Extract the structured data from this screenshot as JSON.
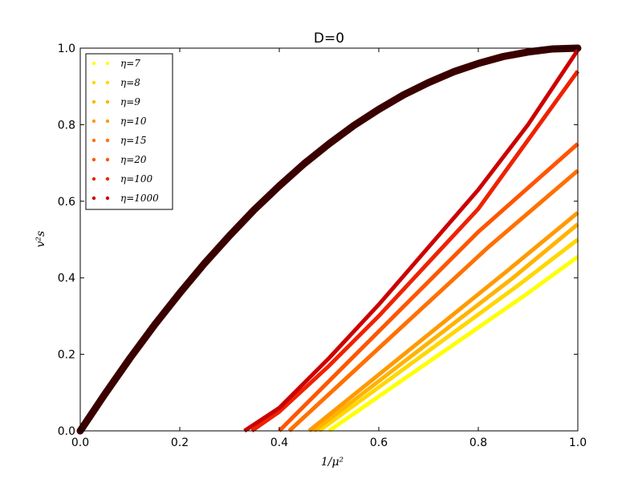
{
  "chart_data": {
    "type": "line",
    "title": "D=0",
    "xlabel": "1/μ²",
    "ylabel": "v²s",
    "xlim": [
      0.0,
      1.0
    ],
    "ylim": [
      0.0,
      1.0
    ],
    "xticks": [
      "0.0",
      "0.2",
      "0.4",
      "0.6",
      "0.8",
      "1.0"
    ],
    "yticks": [
      "0.0",
      "0.2",
      "0.4",
      "0.6",
      "0.8",
      "1.0"
    ],
    "legend_position": "top-left",
    "grid": false,
    "series": [
      {
        "name": "η=7",
        "color": "#ffff00",
        "x": [
          0.5,
          0.6,
          0.7,
          0.8,
          0.9,
          1.0
        ],
        "y": [
          0.0,
          0.09,
          0.18,
          0.27,
          0.36,
          0.455
        ]
      },
      {
        "name": "η=8",
        "color": "#ffd700",
        "x": [
          0.48,
          0.58,
          0.68,
          0.78,
          0.88,
          1.0
        ],
        "y": [
          0.0,
          0.095,
          0.19,
          0.285,
          0.38,
          0.5
        ]
      },
      {
        "name": "η=9",
        "color": "#ffb300",
        "x": [
          0.47,
          0.57,
          0.67,
          0.77,
          0.87,
          1.0
        ],
        "y": [
          0.0,
          0.1,
          0.2,
          0.3,
          0.4,
          0.54
        ]
      },
      {
        "name": "η=10",
        "color": "#ff9a00",
        "x": [
          0.46,
          0.56,
          0.66,
          0.76,
          0.86,
          1.0
        ],
        "y": [
          0.0,
          0.105,
          0.21,
          0.315,
          0.42,
          0.57
        ]
      },
      {
        "name": "η=15",
        "color": "#ff7000",
        "x": [
          0.42,
          0.52,
          0.62,
          0.72,
          0.82,
          1.0
        ],
        "y": [
          0.0,
          0.12,
          0.24,
          0.36,
          0.48,
          0.68
        ]
      },
      {
        "name": "η=20",
        "color": "#ff5500",
        "x": [
          0.4,
          0.5,
          0.6,
          0.7,
          0.8,
          1.0
        ],
        "y": [
          0.0,
          0.13,
          0.26,
          0.39,
          0.52,
          0.75
        ]
      },
      {
        "name": "η=100",
        "color": "#ee2200",
        "x": [
          0.345,
          0.4,
          0.5,
          0.6,
          0.7,
          0.8,
          0.9,
          1.0
        ],
        "y": [
          0.0,
          0.05,
          0.17,
          0.3,
          0.44,
          0.58,
          0.76,
          0.94
        ]
      },
      {
        "name": "η=1000",
        "color": "#cc0000",
        "x": [
          0.33,
          0.4,
          0.5,
          0.6,
          0.7,
          0.8,
          0.9,
          1.0
        ],
        "y": [
          0.0,
          0.06,
          0.19,
          0.33,
          0.48,
          0.63,
          0.8,
          0.995
        ]
      }
    ],
    "envelope": {
      "color": "#3a0000",
      "x": [
        0.0,
        0.05,
        0.1,
        0.15,
        0.2,
        0.25,
        0.3,
        0.35,
        0.4,
        0.45,
        0.5,
        0.55,
        0.6,
        0.65,
        0.7,
        0.75,
        0.8,
        0.85,
        0.9,
        0.95,
        1.0
      ],
      "y": [
        0.0,
        0.097,
        0.19,
        0.278,
        0.36,
        0.438,
        0.51,
        0.578,
        0.64,
        0.698,
        0.75,
        0.798,
        0.84,
        0.878,
        0.91,
        0.938,
        0.96,
        0.978,
        0.99,
        0.998,
        1.0
      ]
    }
  }
}
